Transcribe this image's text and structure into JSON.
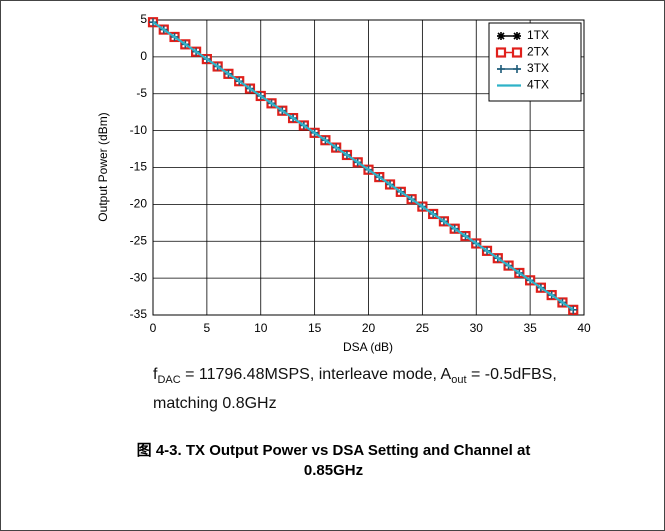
{
  "chart_data": {
    "type": "line",
    "xlabel": "DSA (dB)",
    "ylabel": "Output Power (dBm)",
    "x": [
      0,
      1,
      2,
      3,
      4,
      5,
      6,
      7,
      8,
      9,
      10,
      11,
      12,
      13,
      14,
      15,
      16,
      17,
      18,
      19,
      20,
      21,
      22,
      23,
      24,
      25,
      26,
      27,
      28,
      29,
      30,
      31,
      32,
      33,
      34,
      35,
      36,
      37,
      38,
      39
    ],
    "series": [
      {
        "name": "1TX",
        "color": "#000000",
        "marker": "star",
        "values": [
          4.7,
          3.7,
          2.7,
          1.7,
          0.7,
          -0.3,
          -1.3,
          -2.3,
          -3.3,
          -4.3,
          -5.3,
          -6.3,
          -7.3,
          -8.3,
          -9.3,
          -10.3,
          -11.3,
          -12.3,
          -13.3,
          -14.3,
          -15.3,
          -16.3,
          -17.3,
          -18.3,
          -19.3,
          -20.3,
          -21.3,
          -22.3,
          -23.3,
          -24.3,
          -25.3,
          -26.3,
          -27.3,
          -28.3,
          -29.3,
          -30.3,
          -31.3,
          -32.3,
          -33.3,
          -34.3
        ]
      },
      {
        "name": "2TX",
        "color": "#e0201b",
        "marker": "square",
        "values": [
          4.7,
          3.7,
          2.7,
          1.7,
          0.7,
          -0.3,
          -1.3,
          -2.3,
          -3.3,
          -4.3,
          -5.3,
          -6.3,
          -7.3,
          -8.3,
          -9.3,
          -10.3,
          -11.3,
          -12.3,
          -13.3,
          -14.3,
          -15.3,
          -16.3,
          -17.3,
          -18.3,
          -19.3,
          -20.3,
          -21.3,
          -22.3,
          -23.3,
          -24.3,
          -25.3,
          -26.3,
          -27.3,
          -28.3,
          -29.3,
          -30.3,
          -31.3,
          -32.3,
          -33.3,
          -34.3
        ]
      },
      {
        "name": "3TX",
        "color": "#1c5a78",
        "marker": "plus",
        "values": [
          4.7,
          3.7,
          2.7,
          1.7,
          0.7,
          -0.3,
          -1.3,
          -2.3,
          -3.3,
          -4.3,
          -5.3,
          -6.3,
          -7.3,
          -8.3,
          -9.3,
          -10.3,
          -11.3,
          -12.3,
          -13.3,
          -14.3,
          -15.3,
          -16.3,
          -17.3,
          -18.3,
          -19.3,
          -20.3,
          -21.3,
          -22.3,
          -23.3,
          -24.3,
          -25.3,
          -26.3,
          -27.3,
          -28.3,
          -29.3,
          -30.3,
          -31.3,
          -32.3,
          -33.3,
          -34.3
        ]
      },
      {
        "name": "4TX",
        "color": "#2eb2c8",
        "marker": "none",
        "values": [
          4.7,
          3.7,
          2.7,
          1.7,
          0.7,
          -0.3,
          -1.3,
          -2.3,
          -3.3,
          -4.3,
          -5.3,
          -6.3,
          -7.3,
          -8.3,
          -9.3,
          -10.3,
          -11.3,
          -12.3,
          -13.3,
          -14.3,
          -15.3,
          -16.3,
          -17.3,
          -18.3,
          -19.3,
          -20.3,
          -21.3,
          -22.3,
          -23.3,
          -24.3,
          -25.3,
          -26.3,
          -27.3,
          -28.3,
          -29.3,
          -30.3,
          -31.3,
          -32.3,
          -33.3,
          -34.3
        ]
      }
    ],
    "xlim": [
      0,
      40
    ],
    "xticks": [
      0,
      5,
      10,
      15,
      20,
      25,
      30,
      35,
      40
    ],
    "ylim": [
      -35,
      5
    ],
    "yticks": [
      5,
      0,
      -5,
      -10,
      -15,
      -20,
      -25,
      -30,
      -35
    ],
    "grid": true,
    "legend": "upper right"
  },
  "note": {
    "parts": [
      "f",
      "DAC",
      " = 11796.48MSPS, interleave mode, A",
      "out",
      " = -0.5dFBS,"
    ],
    "line2": "matching 0.8GHz"
  },
  "caption": "图 4-3. TX Output Power vs DSA Setting and Channel at 0.85GHz"
}
